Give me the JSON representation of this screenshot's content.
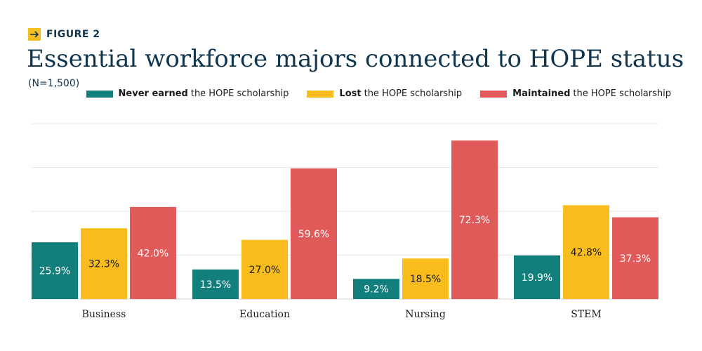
{
  "header": {
    "figure_label": "FIGURE 2",
    "title": "Essential workforce majors connected to HOPE status",
    "subtitle": "(N=1,500)"
  },
  "legend": [
    {
      "strong": "Never earned",
      "rest": "the HOPE scholarship",
      "color": "#127f7c"
    },
    {
      "strong": "Lost",
      "rest": "the HOPE scholarship",
      "color": "#f8bd1c"
    },
    {
      "strong": "Maintained",
      "rest": "the HOPE scholarship",
      "color": "#e05a5a"
    }
  ],
  "chart_data": {
    "type": "bar",
    "title": "Essential workforce majors connected to HOPE status",
    "subtitle": "(N=1,500)",
    "categories": [
      "Business",
      "Education",
      "Nursing",
      "STEM"
    ],
    "series": [
      {
        "name": "Never earned the HOPE scholarship",
        "values": [
          25.9,
          13.5,
          9.2,
          19.9
        ],
        "labels": [
          "25.9%",
          "13.5%",
          "9.2%",
          "19.9%"
        ],
        "color": "#127f7c",
        "label_color": "#ffffff"
      },
      {
        "name": "Lost the HOPE scholarship",
        "values": [
          32.3,
          27.0,
          18.5,
          42.8
        ],
        "labels": [
          "32.3%",
          "27.0%",
          "18.5%",
          "42.8%"
        ],
        "color": "#f8bd1c",
        "label_color": "#1b1b1b"
      },
      {
        "name": "Maintained the HOPE scholarship",
        "values": [
          42.0,
          59.6,
          72.3,
          37.3
        ],
        "labels": [
          "42.0%",
          "59.6%",
          "72.3%",
          "37.3%"
        ],
        "color": "#e05a5a",
        "label_color": "#ffffff"
      }
    ],
    "ylim": [
      0,
      75
    ],
    "grid": true,
    "legend_position": "top-right"
  }
}
